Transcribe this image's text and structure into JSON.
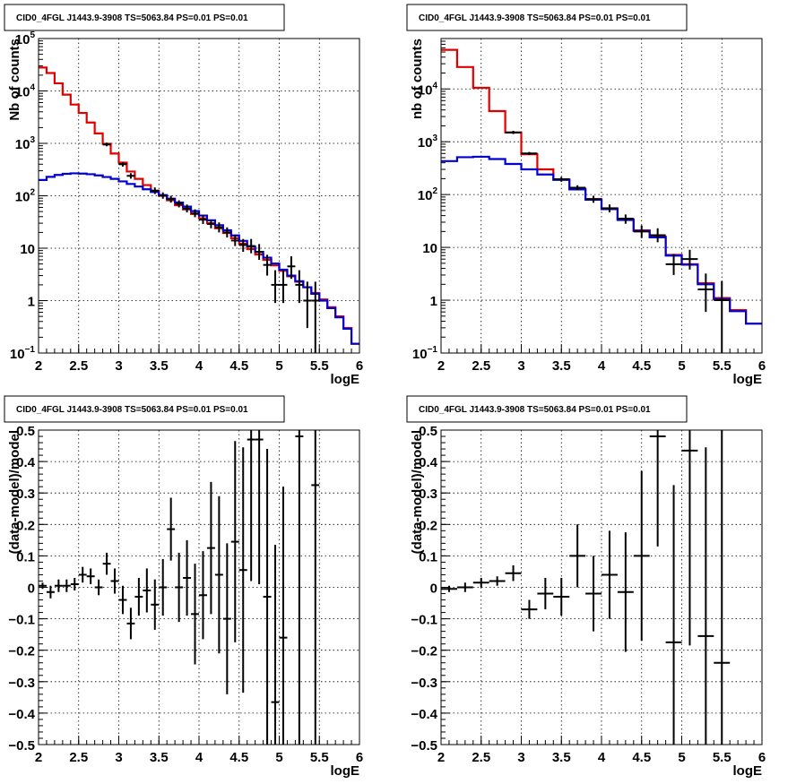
{
  "colors": {
    "data": "#000000",
    "total_model": "#e00000",
    "component_model": "#0000d0"
  },
  "chart_data": [
    {
      "type": "line",
      "panel": "top-left",
      "title": "CID0_4FGL J1443.9-3908 TS=5063.84 PS=0.01 PS=0.01",
      "xlabel": "logE",
      "ylabel": "Nb of counts",
      "xlim": [
        2,
        6
      ],
      "ylim": [
        0.1,
        100000
      ],
      "yscale": "log",
      "grid": true,
      "x_ticks": [
        "2",
        "2.5",
        "3",
        "3.5",
        "4",
        "4.5",
        "5",
        "5.5",
        "6"
      ],
      "y_ticks": [
        {
          "b": "10",
          "e": "−1"
        },
        {
          "b": "1",
          "e": ""
        },
        {
          "b": "10",
          "e": ""
        },
        {
          "b": "10",
          "e": "2"
        },
        {
          "b": "10",
          "e": "3"
        },
        {
          "b": "10",
          "e": "4"
        },
        {
          "b": "10",
          "e": "5"
        }
      ],
      "bin_edges": [
        2.0,
        2.1,
        2.2,
        2.3,
        2.4,
        2.5,
        2.6,
        2.7,
        2.8,
        2.9,
        3.0,
        3.1,
        3.2,
        3.3,
        3.4,
        3.5,
        3.6,
        3.7,
        3.8,
        3.9,
        4.0,
        4.1,
        4.2,
        4.3,
        4.4,
        4.5,
        4.6,
        4.7,
        4.8,
        4.9,
        5.0,
        5.1,
        5.2,
        5.3,
        5.4,
        5.5,
        5.6,
        5.7,
        5.8,
        5.9,
        6.0
      ],
      "series": [
        {
          "color": "#e00000",
          "values": [
            28000,
            22000,
            14000,
            8500,
            5500,
            3800,
            2500,
            1550,
            980,
            640,
            430,
            290,
            210,
            160,
            125,
            100,
            82,
            66,
            55,
            45,
            37,
            30,
            24,
            19.5,
            15.5,
            12.2,
            9.6,
            7.6,
            6.0,
            4.7,
            3.7,
            2.9,
            2.3,
            1.8,
            1.4,
            1.05,
            0.75,
            0.5,
            0.3,
            0.15
          ]
        },
        {
          "color": "#0000d0",
          "values": [
            200,
            230,
            250,
            262,
            268,
            265,
            258,
            245,
            228,
            210,
            188,
            168,
            150,
            133,
            118,
            103,
            88,
            74,
            62,
            51,
            42,
            34,
            27.5,
            22,
            17.5,
            13.8,
            10.8,
            8.5,
            6.6,
            5.1,
            3.9,
            3.0,
            2.35,
            1.8,
            1.35,
            1.0,
            0.72,
            0.48,
            0.29,
            0.15
          ]
        }
      ],
      "points": [
        [
          2.85,
          950,
          880,
          1030
        ],
        [
          3.05,
          400,
          360,
          440
        ],
        [
          3.15,
          240,
          212,
          270
        ],
        [
          3.45,
          125,
          108,
          144
        ],
        [
          3.55,
          101,
          88,
          116
        ],
        [
          3.65,
          86,
          74,
          100
        ],
        [
          3.75,
          70,
          60,
          82
        ],
        [
          3.85,
          57,
          48,
          68
        ],
        [
          3.95,
          46,
          39,
          55
        ],
        [
          4.05,
          35,
          29,
          42
        ],
        [
          4.15,
          29,
          24,
          35
        ],
        [
          4.25,
          25,
          20,
          31
        ],
        [
          4.35,
          20,
          16,
          25
        ],
        [
          4.45,
          14,
          11,
          18
        ],
        [
          4.55,
          11.5,
          8.5,
          15
        ],
        [
          4.65,
          11,
          8,
          15
        ],
        [
          4.75,
          8.5,
          6,
          12
        ],
        [
          4.85,
          4.8,
          3,
          7.5
        ],
        [
          4.95,
          2,
          0.9,
          3.8
        ],
        [
          5.05,
          2,
          0.9,
          3.8
        ],
        [
          5.15,
          4.5,
          2.6,
          7
        ],
        [
          5.25,
          2,
          0.9,
          3.8
        ],
        [
          5.35,
          1,
          0.3,
          2.3
        ],
        [
          5.45,
          1,
          0.1,
          2.3
        ]
      ]
    },
    {
      "type": "line",
      "panel": "top-right",
      "title": "CID0_4FGL J1443.9-3908 TS=5063.84 PS=0.01 PS=0.01",
      "xlabel": "logE",
      "ylabel": "nb of counts",
      "xlim": [
        2,
        6
      ],
      "ylim": [
        0.1,
        90000
      ],
      "yscale": "log",
      "grid": true,
      "x_ticks": [
        "2",
        "2.5",
        "3",
        "3.5",
        "4",
        "4.5",
        "5",
        "5.5",
        "6"
      ],
      "y_ticks": [
        {
          "b": "10",
          "e": "−1"
        },
        {
          "b": "1",
          "e": ""
        },
        {
          "b": "10",
          "e": ""
        },
        {
          "b": "10",
          "e": "2"
        },
        {
          "b": "10",
          "e": "3"
        },
        {
          "b": "10",
          "e": "4"
        }
      ],
      "bin_edges": [
        2.0,
        2.2,
        2.4,
        2.6,
        2.8,
        3.0,
        3.2,
        3.4,
        3.6,
        3.8,
        4.0,
        4.2,
        4.4,
        4.6,
        4.8,
        5.0,
        5.2,
        5.4,
        5.6,
        5.8,
        6.0
      ],
      "series": [
        {
          "color": "#e00000",
          "values": [
            55000,
            26000,
            10500,
            3800,
            1500,
            580,
            300,
            195,
            130,
            82,
            55,
            34,
            21,
            16,
            7.2,
            4.8,
            2.1,
            1.1,
            0.65,
            0.36
          ]
        },
        {
          "color": "#0000d0",
          "values": [
            430,
            510,
            520,
            470,
            380,
            300,
            240,
            190,
            125,
            80,
            53,
            33,
            20.5,
            15.5,
            7.0,
            4.7,
            2.0,
            1.05,
            0.62,
            0.36
          ]
        }
      ],
      "points": [
        [
          2.9,
          1500,
          1400,
          1610
        ],
        [
          3.1,
          600,
          560,
          640
        ],
        [
          3.5,
          195,
          175,
          215
        ],
        [
          3.7,
          135,
          120,
          150
        ],
        [
          3.9,
          82,
          70,
          95
        ],
        [
          4.1,
          55,
          46,
          65
        ],
        [
          4.3,
          35,
          28,
          42
        ],
        [
          4.5,
          20,
          15,
          26
        ],
        [
          4.7,
          17,
          12.5,
          23
        ],
        [
          4.9,
          4.8,
          3,
          7.5
        ],
        [
          5.1,
          6,
          3.8,
          9
        ],
        [
          5.3,
          1.6,
          0.6,
          3.2
        ],
        [
          5.5,
          1,
          0.1,
          2.3
        ]
      ]
    },
    {
      "type": "scatter",
      "panel": "bottom-left",
      "title": "CID0_4FGL J1443.9-3908 TS=5063.84 PS=0.01 PS=0.01",
      "xlabel": "logE",
      "ylabel": "(data-model)/model",
      "xlim": [
        2,
        6
      ],
      "ylim": [
        -0.5,
        0.5
      ],
      "grid": true,
      "x_ticks": [
        "2",
        "2.5",
        "3",
        "3.5",
        "4",
        "4.5",
        "5",
        "5.5",
        "6"
      ],
      "y_ticks": [
        "−0.5",
        "−0.4",
        "−0.3",
        "−0.2",
        "−0.1",
        "0",
        "0.1",
        "0.2",
        "0.3",
        "0.4",
        "0.5"
      ],
      "bin_width": 0.1,
      "points": [
        [
          2.05,
          0.005,
          0.01
        ],
        [
          2.15,
          -0.015,
          0.02
        ],
        [
          2.25,
          0.005,
          0.02
        ],
        [
          2.35,
          0.005,
          0.02
        ],
        [
          2.45,
          0.01,
          0.02
        ],
        [
          2.55,
          0.04,
          0.025
        ],
        [
          2.65,
          0.035,
          0.025
        ],
        [
          2.75,
          0.0,
          0.025
        ],
        [
          2.85,
          0.075,
          0.035
        ],
        [
          2.95,
          0.02,
          0.04
        ],
        [
          3.05,
          -0.04,
          0.045
        ],
        [
          3.15,
          -0.115,
          0.05
        ],
        [
          3.25,
          -0.03,
          0.06
        ],
        [
          3.35,
          -0.01,
          0.07
        ],
        [
          3.45,
          -0.055,
          0.08
        ],
        [
          3.55,
          0.0,
          0.09
        ],
        [
          3.65,
          0.185,
          0.1
        ],
        [
          3.75,
          0.0,
          0.11
        ],
        [
          3.85,
          0.03,
          0.12
        ],
        [
          3.95,
          -0.085,
          0.16
        ],
        [
          4.05,
          -0.025,
          0.14
        ],
        [
          4.15,
          0.125,
          0.21
        ],
        [
          4.25,
          0.04,
          0.25
        ],
        [
          4.35,
          -0.1,
          0.24
        ],
        [
          4.45,
          0.145,
          0.32
        ],
        [
          4.55,
          0.055,
          0.39
        ],
        [
          4.65,
          0.47,
          0.45
        ],
        [
          4.75,
          0.47,
          0.46
        ],
        [
          4.85,
          -0.03,
          0.47
        ],
        [
          4.95,
          -0.365,
          0.5
        ],
        [
          5.05,
          -0.16,
          0.48
        ],
        [
          5.25,
          0.48,
          0.98
        ],
        [
          5.45,
          0.325,
          1.0
        ]
      ]
    },
    {
      "type": "scatter",
      "panel": "bottom-right",
      "title": "CID0_4FGL J1443.9-3908 TS=5063.84 PS=0.01 PS=0.01",
      "xlabel": "logE",
      "ylabel": "(data-model)/model",
      "xlim": [
        2,
        6
      ],
      "ylim": [
        -0.5,
        0.5
      ],
      "grid": true,
      "x_ticks": [
        "2",
        "2.5",
        "3",
        "3.5",
        "4",
        "4.5",
        "5",
        "5.5",
        "6"
      ],
      "y_ticks": [
        "−0.5",
        "−0.4",
        "−0.3",
        "−0.2",
        "−0.1",
        "0",
        "0.1",
        "0.2",
        "0.3",
        "0.4",
        "0.5"
      ],
      "bin_width": 0.2,
      "points": [
        [
          2.1,
          -0.005,
          0.01
        ],
        [
          2.3,
          0.0,
          0.015
        ],
        [
          2.5,
          0.015,
          0.015
        ],
        [
          2.7,
          0.02,
          0.015
        ],
        [
          2.9,
          0.045,
          0.025
        ],
        [
          3.1,
          -0.07,
          0.03
        ],
        [
          3.3,
          -0.02,
          0.05
        ],
        [
          3.5,
          -0.03,
          0.06
        ],
        [
          3.7,
          0.1,
          0.1
        ],
        [
          3.9,
          -0.02,
          0.12
        ],
        [
          4.1,
          0.04,
          0.14
        ],
        [
          4.3,
          -0.015,
          0.19
        ],
        [
          4.5,
          0.1,
          0.27
        ],
        [
          4.7,
          0.48,
          0.35
        ],
        [
          4.9,
          -0.175,
          0.5
        ],
        [
          5.1,
          0.435,
          0.62
        ],
        [
          5.3,
          -0.155,
          0.6
        ],
        [
          5.5,
          -0.24,
          0.9
        ]
      ]
    }
  ]
}
